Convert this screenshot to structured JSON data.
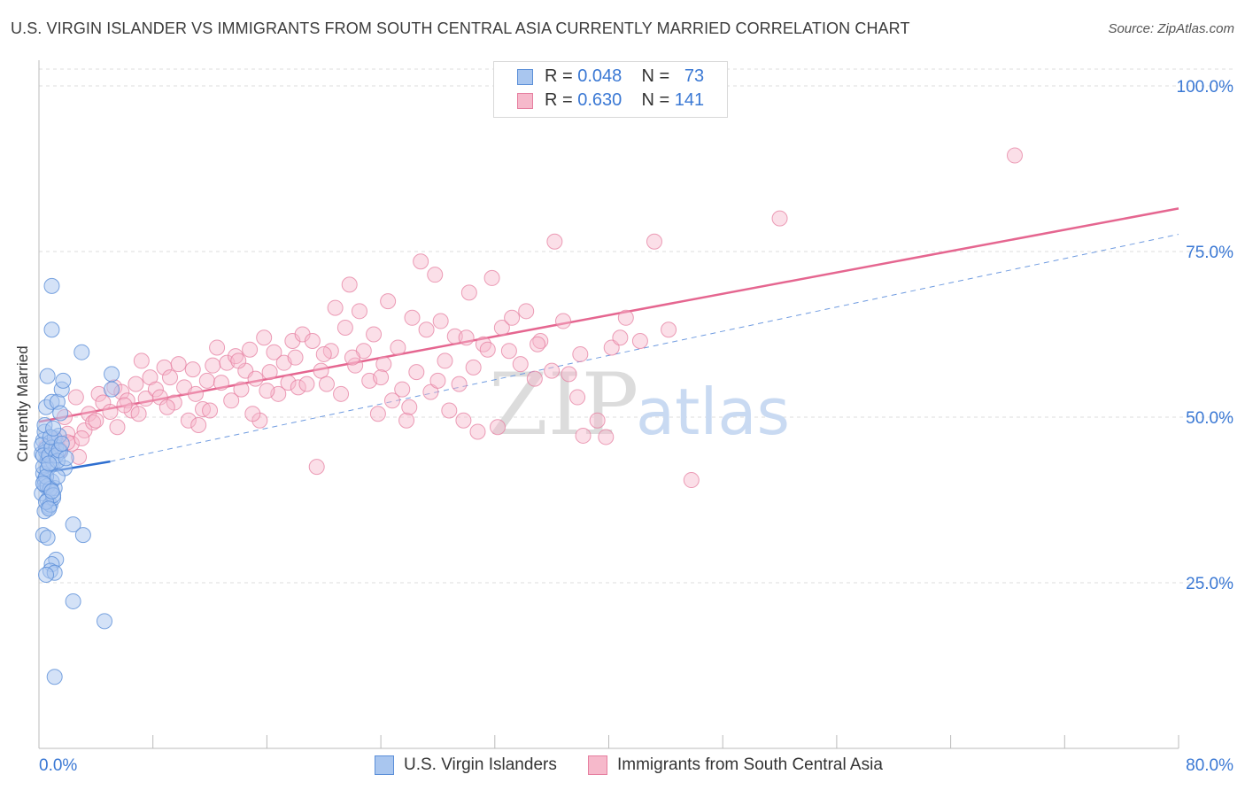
{
  "title": "U.S. VIRGIN ISLANDER VS IMMIGRANTS FROM SOUTH CENTRAL ASIA CURRENTLY MARRIED CORRELATION CHART",
  "source": "Source: ZipAtlas.com",
  "watermark": {
    "zip": "ZIP",
    "atlas": "atlas"
  },
  "legend": {
    "blue": {
      "r_label": "R = ",
      "r_value": "0.048",
      "n_label": "N = ",
      "n_value": "73"
    },
    "pink": {
      "r_label": "R = ",
      "r_value": "0.630",
      "n_label": "N = ",
      "n_value": "141"
    }
  },
  "bottom_legend": {
    "blue_label": "U.S. Virgin Islanders",
    "pink_label": "Immigrants from South Central Asia"
  },
  "colors": {
    "blue_fill": "#a9c6ef",
    "blue_stroke": "#5b8fd8",
    "blue_line": "#2f6fd0",
    "pink_fill": "#f6b9cb",
    "pink_stroke": "#e67fa0",
    "pink_line": "#e56690",
    "tick_text": "#3a78d4",
    "grid": "#dcdcdc"
  },
  "chart_data": {
    "type": "scatter",
    "title": "U.S. VIRGIN ISLANDER VS IMMIGRANTS FROM SOUTH CENTRAL ASIA CURRENTLY MARRIED CORRELATION CHART",
    "xlabel": "",
    "ylabel": "Currently Married",
    "xlim": [
      0,
      80
    ],
    "ylim": [
      0,
      105
    ],
    "x_tick_labels": [
      "0.0%",
      "80.0%"
    ],
    "y_ticks": [
      25,
      50,
      75,
      100
    ],
    "y_tick_labels": [
      "25.0%",
      "50.0%",
      "75.0%",
      "100.0%"
    ],
    "grid": true,
    "legend_position": "top-center",
    "series": [
      {
        "name": "U.S. Virgin Islanders",
        "color": "#5b8fd8",
        "r": 0.048,
        "n": 73,
        "trend": {
          "x": [
            0,
            5
          ],
          "y": [
            41.5,
            43.3
          ]
        },
        "points": [
          [
            0.2,
            44.5
          ],
          [
            0.3,
            46.5
          ],
          [
            0.4,
            47.8
          ],
          [
            0.5,
            45.2
          ],
          [
            0.6,
            43.5
          ],
          [
            0.3,
            41.5
          ],
          [
            0.4,
            40.5
          ],
          [
            0.5,
            39.5
          ],
          [
            0.2,
            38.5
          ],
          [
            0.6,
            37.5
          ],
          [
            0.7,
            36.5
          ],
          [
            0.4,
            35.8
          ],
          [
            0.8,
            36.8
          ],
          [
            1.0,
            37.8
          ],
          [
            1.1,
            39.3
          ],
          [
            0.9,
            40.3
          ],
          [
            0.3,
            42.5
          ],
          [
            0.5,
            44.8
          ],
          [
            0.8,
            46.2
          ],
          [
            1.2,
            45.5
          ],
          [
            1.5,
            44.8
          ],
          [
            1.0,
            43.2
          ],
          [
            0.6,
            42.2
          ],
          [
            0.4,
            48.8
          ],
          [
            0.5,
            51.5
          ],
          [
            0.9,
            52.3
          ],
          [
            1.3,
            52.3
          ],
          [
            1.5,
            50.6
          ],
          [
            1.6,
            54.2
          ],
          [
            1.7,
            55.5
          ],
          [
            0.6,
            56.2
          ],
          [
            1.8,
            42.3
          ],
          [
            1.1,
            46.8
          ],
          [
            1.4,
            47.2
          ],
          [
            0.2,
            45.8
          ],
          [
            0.3,
            44.2
          ],
          [
            0.7,
            44.2
          ],
          [
            0.9,
            45.4
          ],
          [
            1.2,
            44.2
          ],
          [
            1.3,
            43.4
          ],
          [
            0.4,
            39.8
          ],
          [
            0.6,
            39.6
          ],
          [
            0.8,
            39.2
          ],
          [
            1.0,
            38.2
          ],
          [
            0.5,
            37.2
          ],
          [
            0.7,
            36.2
          ],
          [
            0.3,
            32.2
          ],
          [
            0.6,
            31.8
          ],
          [
            1.2,
            28.5
          ],
          [
            0.9,
            27.8
          ],
          [
            0.8,
            26.8
          ],
          [
            1.1,
            26.5
          ],
          [
            0.5,
            26.2
          ],
          [
            2.4,
            33.8
          ],
          [
            3.1,
            32.2
          ],
          [
            2.4,
            22.2
          ],
          [
            4.6,
            19.2
          ],
          [
            1.1,
            10.8
          ],
          [
            0.9,
            63.2
          ],
          [
            0.9,
            69.8
          ],
          [
            3.0,
            59.8
          ],
          [
            5.1,
            56.5
          ],
          [
            5.1,
            54.2
          ],
          [
            1.4,
            45.0
          ],
          [
            0.8,
            47.0
          ],
          [
            1.0,
            48.3
          ],
          [
            0.5,
            41.0
          ],
          [
            1.9,
            43.8
          ],
          [
            0.3,
            40.0
          ],
          [
            1.6,
            46.0
          ],
          [
            0.7,
            43.0
          ],
          [
            1.3,
            41.0
          ],
          [
            0.9,
            38.8
          ]
        ]
      },
      {
        "name": "Immigrants from South Central Asia",
        "color": "#e67fa0",
        "r": 0.63,
        "n": 141,
        "trend": {
          "x": [
            0,
            80
          ],
          "y": [
            49.3,
            81.5
          ]
        },
        "dashed_trend": {
          "x": [
            0,
            80
          ],
          "y": [
            41.5,
            77.6
          ]
        },
        "points": [
          [
            0.5,
            45.5
          ],
          [
            0.8,
            44.5
          ],
          [
            1.2,
            46.5
          ],
          [
            1.5,
            45.0
          ],
          [
            2.0,
            47.5
          ],
          [
            2.3,
            46.0
          ],
          [
            2.8,
            44.0
          ],
          [
            3.2,
            48.0
          ],
          [
            3.5,
            50.5
          ],
          [
            3.8,
            49.2
          ],
          [
            4.2,
            53.5
          ],
          [
            4.5,
            52.2
          ],
          [
            5.0,
            50.8
          ],
          [
            5.3,
            54.5
          ],
          [
            5.8,
            53.8
          ],
          [
            6.2,
            52.5
          ],
          [
            6.5,
            51.0
          ],
          [
            6.8,
            55.0
          ],
          [
            7.2,
            58.5
          ],
          [
            7.5,
            52.8
          ],
          [
            7.8,
            56.0
          ],
          [
            8.2,
            54.2
          ],
          [
            8.5,
            53.0
          ],
          [
            8.8,
            57.5
          ],
          [
            9.2,
            56.0
          ],
          [
            9.5,
            52.2
          ],
          [
            9.8,
            58.0
          ],
          [
            10.2,
            54.5
          ],
          [
            10.5,
            49.5
          ],
          [
            10.8,
            57.2
          ],
          [
            11.2,
            48.8
          ],
          [
            11.5,
            51.2
          ],
          [
            11.8,
            55.5
          ],
          [
            12.2,
            57.8
          ],
          [
            12.5,
            60.5
          ],
          [
            12.8,
            55.2
          ],
          [
            13.2,
            58.2
          ],
          [
            13.5,
            52.5
          ],
          [
            13.8,
            59.2
          ],
          [
            14.2,
            54.2
          ],
          [
            14.5,
            57.0
          ],
          [
            14.8,
            60.2
          ],
          [
            15.2,
            55.8
          ],
          [
            15.5,
            49.5
          ],
          [
            15.8,
            62.0
          ],
          [
            16.2,
            56.8
          ],
          [
            16.5,
            59.8
          ],
          [
            16.8,
            53.5
          ],
          [
            17.2,
            58.2
          ],
          [
            17.5,
            55.2
          ],
          [
            17.8,
            61.5
          ],
          [
            18.2,
            54.5
          ],
          [
            18.5,
            62.5
          ],
          [
            18.8,
            55.0
          ],
          [
            19.2,
            61.5
          ],
          [
            19.5,
            42.5
          ],
          [
            19.8,
            57.0
          ],
          [
            20.2,
            55.0
          ],
          [
            20.5,
            60.0
          ],
          [
            20.8,
            66.5
          ],
          [
            21.2,
            53.5
          ],
          [
            21.5,
            63.5
          ],
          [
            21.8,
            70.0
          ],
          [
            22.2,
            57.8
          ],
          [
            22.5,
            66.0
          ],
          [
            22.8,
            60.0
          ],
          [
            23.2,
            55.5
          ],
          [
            23.5,
            62.5
          ],
          [
            23.8,
            50.5
          ],
          [
            24.2,
            58.0
          ],
          [
            24.5,
            67.5
          ],
          [
            24.8,
            52.5
          ],
          [
            25.2,
            60.5
          ],
          [
            25.5,
            54.2
          ],
          [
            25.8,
            49.5
          ],
          [
            26.2,
            65.0
          ],
          [
            26.5,
            56.8
          ],
          [
            26.8,
            73.5
          ],
          [
            27.2,
            63.2
          ],
          [
            27.5,
            53.8
          ],
          [
            27.8,
            71.5
          ],
          [
            28.2,
            64.5
          ],
          [
            28.5,
            58.5
          ],
          [
            28.8,
            51.0
          ],
          [
            29.2,
            62.2
          ],
          [
            29.5,
            55.0
          ],
          [
            29.8,
            49.5
          ],
          [
            30.2,
            68.8
          ],
          [
            30.5,
            57.5
          ],
          [
            30.8,
            47.8
          ],
          [
            31.2,
            61.0
          ],
          [
            31.5,
            60.2
          ],
          [
            31.8,
            71.0
          ],
          [
            32.2,
            48.5
          ],
          [
            32.5,
            63.5
          ],
          [
            33.2,
            65.0
          ],
          [
            33.8,
            58.0
          ],
          [
            34.2,
            66.0
          ],
          [
            34.8,
            55.8
          ],
          [
            35.2,
            61.5
          ],
          [
            36.2,
            76.5
          ],
          [
            36.8,
            64.5
          ],
          [
            37.2,
            56.5
          ],
          [
            37.8,
            53.0
          ],
          [
            38.2,
            47.2
          ],
          [
            39.2,
            49.5
          ],
          [
            39.8,
            47.0
          ],
          [
            40.2,
            60.5
          ],
          [
            40.8,
            62.0
          ],
          [
            41.2,
            65.0
          ],
          [
            42.2,
            61.5
          ],
          [
            43.2,
            76.5
          ],
          [
            44.2,
            63.2
          ],
          [
            45.8,
            40.5
          ],
          [
            52.0,
            80.0
          ],
          [
            68.5,
            89.5
          ],
          [
            3.0,
            46.8
          ],
          [
            2.0,
            46.2
          ],
          [
            4.0,
            49.5
          ],
          [
            6.0,
            51.8
          ],
          [
            1.8,
            50.0
          ],
          [
            2.6,
            53.0
          ],
          [
            12.0,
            51.0
          ],
          [
            18.0,
            59.0
          ],
          [
            22.0,
            59.0
          ],
          [
            24.0,
            56.0
          ],
          [
            28.0,
            55.5
          ],
          [
            33.0,
            60.0
          ],
          [
            36.0,
            57.0
          ],
          [
            26.0,
            51.5
          ],
          [
            15.0,
            50.5
          ],
          [
            9.0,
            51.5
          ],
          [
            5.5,
            48.5
          ],
          [
            7.0,
            50.5
          ],
          [
            11.0,
            53.5
          ],
          [
            14.0,
            58.5
          ],
          [
            16.0,
            54.0
          ],
          [
            20.0,
            59.5
          ],
          [
            30.0,
            62.0
          ],
          [
            35.0,
            61.0
          ],
          [
            38.0,
            59.5
          ]
        ]
      }
    ]
  }
}
